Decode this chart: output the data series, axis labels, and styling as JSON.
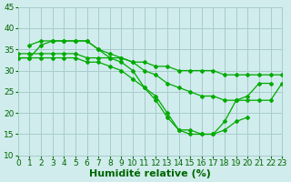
{
  "background_color": "#d0ecec",
  "grid_color": "#a8cccc",
  "line_color": "#00aa00",
  "xlabel": "Humidité relative (%)",
  "xlim": [
    0,
    23
  ],
  "ylim": [
    10,
    45
  ],
  "xticks": [
    0,
    1,
    2,
    3,
    4,
    5,
    6,
    7,
    8,
    9,
    10,
    11,
    12,
    13,
    14,
    15,
    16,
    17,
    18,
    19,
    20,
    21,
    22,
    23
  ],
  "yticks": [
    10,
    15,
    20,
    25,
    30,
    35,
    40,
    45
  ],
  "tick_fontsize": 6.5,
  "label_fontsize": 8,
  "font_color": "#006600",
  "lines": [
    {
      "x": [
        1,
        2,
        3,
        4,
        5,
        6,
        7,
        8,
        9,
        10,
        11,
        12,
        13,
        14,
        15,
        16,
        17,
        18,
        19,
        20,
        21,
        22,
        23
      ],
      "y": [
        36,
        37,
        37,
        37,
        37,
        37,
        35,
        34,
        33,
        32,
        30,
        29,
        27,
        26,
        25,
        24,
        24,
        23,
        23,
        23,
        23,
        23,
        27
      ]
    },
    {
      "x": [
        0,
        1,
        2,
        3,
        4,
        5,
        6,
        7,
        8,
        9,
        10,
        11,
        12,
        13,
        14,
        15,
        16,
        17,
        18,
        19,
        20,
        21,
        22
      ],
      "y": [
        33,
        33,
        36,
        37,
        37,
        37,
        37,
        35,
        33,
        32,
        30,
        26,
        24,
        20,
        16,
        16,
        15,
        15,
        18,
        23,
        24,
        27,
        27
      ]
    },
    {
      "x": [
        0,
        1,
        2,
        3,
        4,
        5,
        6,
        7,
        8,
        9,
        10,
        11,
        12,
        13,
        14,
        15,
        16,
        17,
        18,
        19,
        20
      ],
      "y": [
        33,
        33,
        33,
        33,
        33,
        33,
        32,
        32,
        31,
        30,
        28,
        26,
        23,
        19,
        16,
        15,
        15,
        15,
        16,
        18,
        19
      ]
    },
    {
      "x": [
        0,
        1,
        2,
        3,
        4,
        5,
        6,
        7,
        8,
        9,
        10,
        11,
        12,
        13,
        14,
        15,
        16,
        17,
        18,
        19,
        20,
        21,
        22,
        23
      ],
      "y": [
        34,
        34,
        34,
        34,
        34,
        34,
        33,
        33,
        33,
        33,
        32,
        32,
        31,
        31,
        30,
        30,
        30,
        30,
        29,
        29,
        29,
        29,
        29,
        29
      ]
    }
  ]
}
